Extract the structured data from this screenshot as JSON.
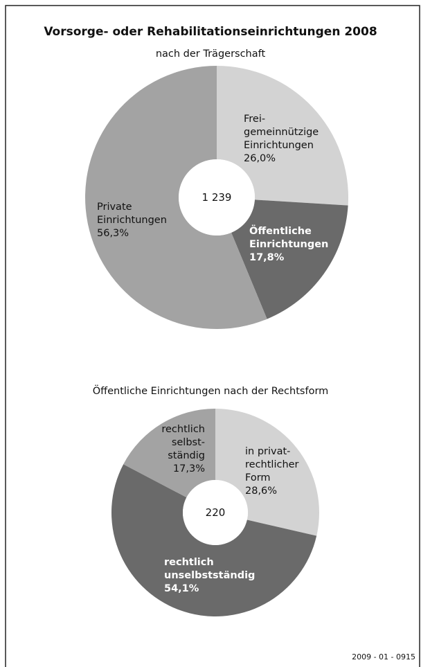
{
  "title": "Vorsorge- oder Rehabilitationseinrichtungen 2008",
  "chart_data": [
    {
      "type": "pie",
      "subtitle": "nach der Trägerschaft",
      "center_label": "1 239",
      "categories": [
        "Frei-\ngemeinnützige\nEinrichtungen",
        "Öffentliche\nEinrichtungen",
        "Private\nEinrichtungen"
      ],
      "values": [
        26.0,
        17.8,
        56.3
      ],
      "value_labels": [
        "26,0%",
        "17,8%",
        "56,3%"
      ],
      "colors": [
        "#d3d3d3",
        "#6a6a6a",
        "#a3a3a3"
      ]
    },
    {
      "type": "pie",
      "subtitle": "Öffentliche Einrichtungen nach der Rechtsform",
      "center_label": "220",
      "categories": [
        "in privat-\nrechtlicher\nForm",
        "rechtlich\nunselbstständig",
        "rechtlich\nselbst-\nständig"
      ],
      "values": [
        28.6,
        54.1,
        17.3
      ],
      "value_labels": [
        "28,6%",
        "54,1%",
        "17,3%"
      ],
      "colors": [
        "#d3d3d3",
        "#6a6a6a",
        "#a3a3a3"
      ]
    }
  ],
  "footer": "2009 - 01 - 0915"
}
